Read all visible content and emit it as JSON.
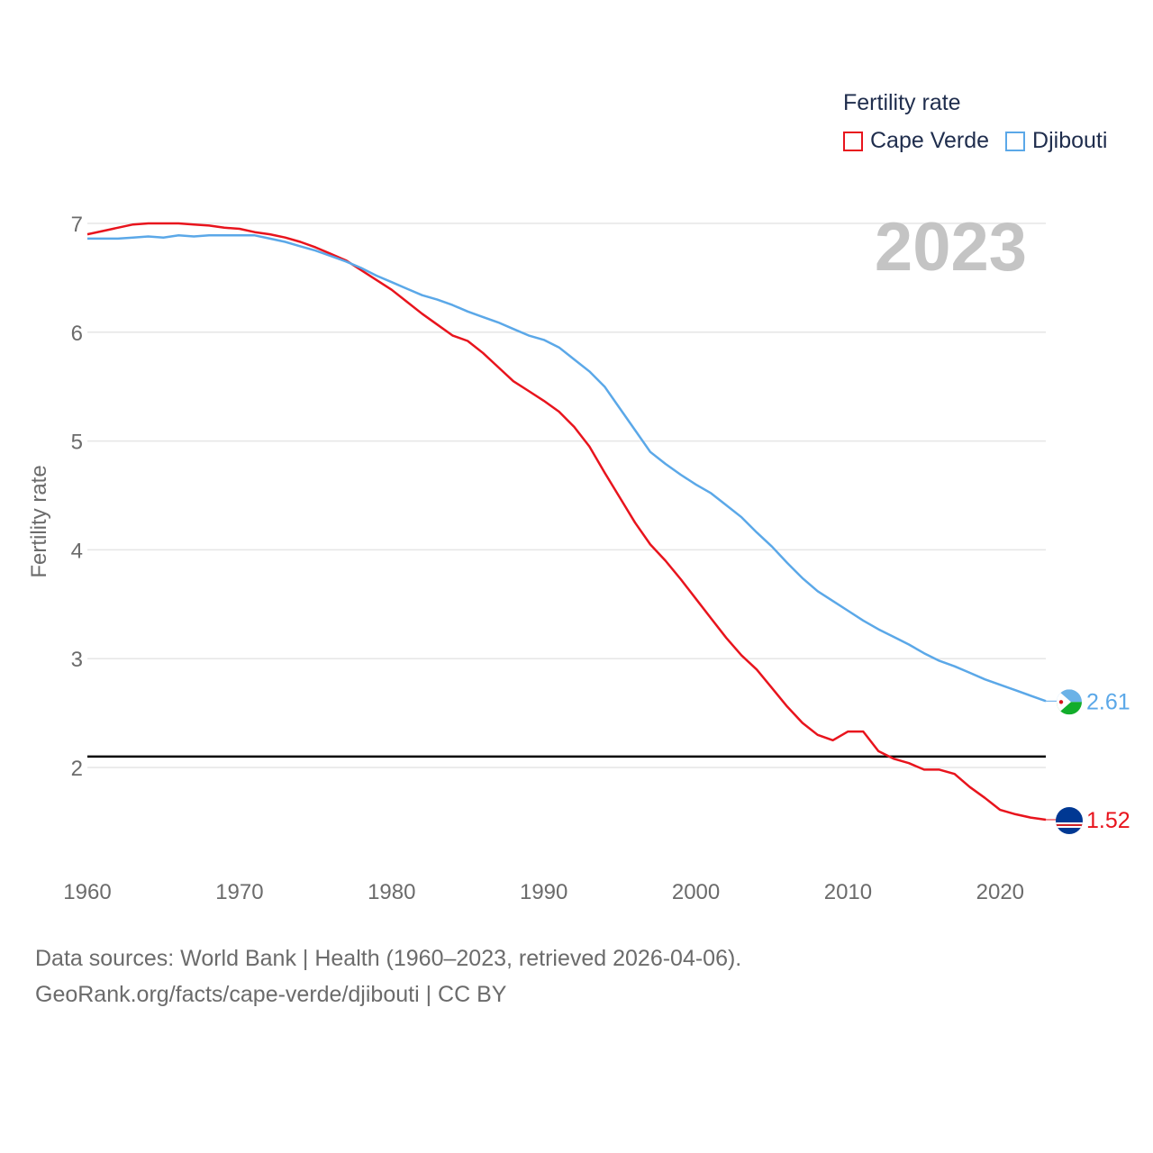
{
  "chart_data": {
    "type": "line",
    "legend_title": "Fertility rate",
    "ylabel": "Fertility rate",
    "year_label": "2023",
    "xlim": [
      1960,
      2023
    ],
    "ylim": [
      1.1,
      7.2
    ],
    "x_ticks": [
      1960,
      1970,
      1980,
      1990,
      2000,
      2010,
      2020
    ],
    "y_ticks": [
      2,
      3,
      4,
      5,
      6,
      7
    ],
    "reference_line": 2.1,
    "x": [
      1960,
      1961,
      1962,
      1963,
      1964,
      1965,
      1966,
      1967,
      1968,
      1969,
      1970,
      1971,
      1972,
      1973,
      1974,
      1975,
      1976,
      1977,
      1978,
      1979,
      1980,
      1981,
      1982,
      1983,
      1984,
      1985,
      1986,
      1987,
      1988,
      1989,
      1990,
      1991,
      1992,
      1993,
      1994,
      1995,
      1996,
      1997,
      1998,
      1999,
      2000,
      2001,
      2002,
      2003,
      2004,
      2005,
      2006,
      2007,
      2008,
      2009,
      2010,
      2011,
      2012,
      2013,
      2014,
      2015,
      2016,
      2017,
      2018,
      2019,
      2020,
      2021,
      2022,
      2023
    ],
    "series": [
      {
        "name": "Cape Verde",
        "color": "#e8141d",
        "end_label": "1.52",
        "values": [
          6.9,
          6.93,
          6.96,
          6.99,
          7.0,
          7.0,
          7.0,
          6.99,
          6.98,
          6.96,
          6.95,
          6.92,
          6.9,
          6.87,
          6.83,
          6.78,
          6.72,
          6.66,
          6.57,
          6.48,
          6.39,
          6.28,
          6.17,
          6.07,
          5.97,
          5.92,
          5.81,
          5.68,
          5.55,
          5.46,
          5.37,
          5.27,
          5.13,
          4.95,
          4.71,
          4.48,
          4.25,
          4.05,
          3.9,
          3.73,
          3.55,
          3.37,
          3.19,
          3.03,
          2.9,
          2.73,
          2.56,
          2.41,
          2.3,
          2.25,
          2.33,
          2.33,
          2.15,
          2.08,
          2.04,
          1.98,
          1.98,
          1.94,
          1.82,
          1.72,
          1.61,
          1.57,
          1.54,
          1.52
        ]
      },
      {
        "name": "Djibouti",
        "color": "#5ba8e8",
        "end_label": "2.61",
        "values": [
          6.86,
          6.86,
          6.86,
          6.87,
          6.88,
          6.87,
          6.89,
          6.88,
          6.89,
          6.89,
          6.89,
          6.89,
          6.86,
          6.83,
          6.79,
          6.75,
          6.7,
          6.65,
          6.59,
          6.52,
          6.46,
          6.4,
          6.34,
          6.3,
          6.25,
          6.19,
          6.14,
          6.09,
          6.03,
          5.97,
          5.93,
          5.86,
          5.75,
          5.64,
          5.5,
          5.3,
          5.1,
          4.9,
          4.79,
          4.69,
          4.6,
          4.52,
          4.41,
          4.3,
          4.16,
          4.03,
          3.88,
          3.74,
          3.62,
          3.53,
          3.44,
          3.35,
          3.27,
          3.2,
          3.13,
          3.05,
          2.98,
          2.93,
          2.87,
          2.81,
          2.76,
          2.71,
          2.66,
          2.61
        ]
      }
    ]
  },
  "sources": {
    "line1": "Data sources: World Bank | Health (1960–2023, retrieved 2026-04-06).",
    "line2": "GeoRank.org/facts/cape-verde/djibouti | CC BY"
  }
}
